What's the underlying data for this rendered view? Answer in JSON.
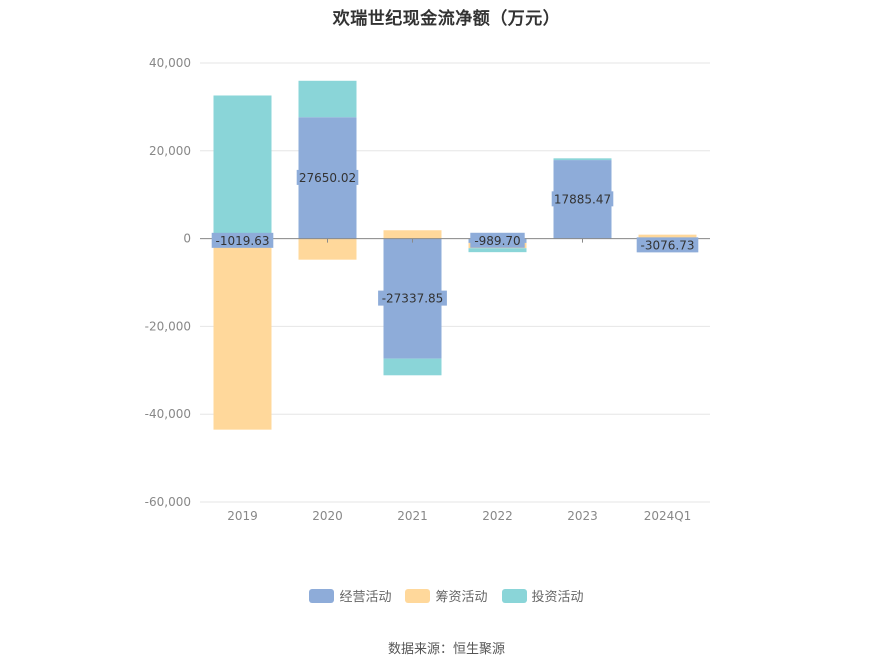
{
  "chart_data": {
    "type": "bar",
    "stacked": true,
    "title": "欢瑞世纪现金流净额（万元）",
    "categories": [
      "2019",
      "2020",
      "2021",
      "2022",
      "2023",
      "2024Q1"
    ],
    "series": [
      {
        "name": "经营活动",
        "color": "#8eacd9",
        "values": [
          -1019.63,
          27650.02,
          -27337.85,
          -989.7,
          17885.47,
          -3076.73
        ],
        "labels": [
          "-1019.63",
          "27650.02",
          "-27337.85",
          "-989.70",
          "17885.47",
          "-3076.73"
        ]
      },
      {
        "name": "筹资活动",
        "color": "#ffd89b",
        "values": [
          -42500,
          -4800,
          1900,
          -1200,
          0,
          900
        ]
      },
      {
        "name": "投资活动",
        "color": "#8ad5d8",
        "values": [
          32600,
          8300,
          -3800,
          -900,
          400,
          0
        ]
      }
    ],
    "ylim": [
      -60000,
      40000
    ],
    "yticks": [
      40000,
      20000,
      0,
      -20000,
      -40000,
      -60000
    ],
    "ytick_labels": [
      "40,000",
      "20,000",
      "0",
      "-20,000",
      "-40,000",
      "-60,000"
    ],
    "xlabel": "",
    "ylabel": "",
    "grid": true,
    "legend_position": "bottom"
  },
  "source": "数据来源：恒生聚源"
}
